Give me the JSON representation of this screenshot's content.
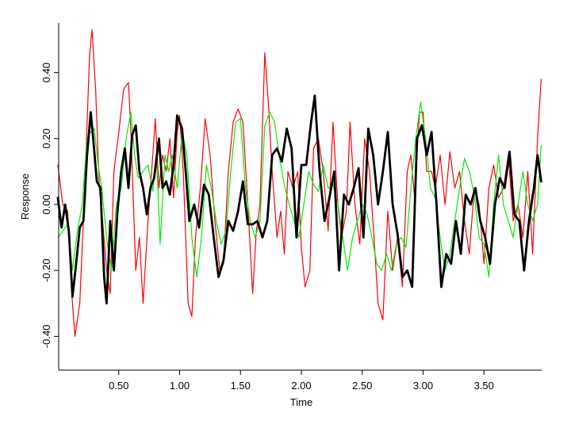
{
  "chart_data": {
    "type": "line",
    "title": "",
    "xlabel": "Time",
    "ylabel": "Response",
    "xlim": [
      0.0,
      3.98
    ],
    "ylim": [
      -0.5,
      0.55
    ],
    "grid": false,
    "legend": null,
    "x_ticks": [
      0.5,
      1.0,
      1.5,
      2.0,
      2.5,
      3.0,
      3.5
    ],
    "x_tick_labels": [
      "0.50",
      "1.00",
      "1.50",
      "2.00",
      "2.50",
      "3.00",
      "3.50"
    ],
    "y_ticks": [
      -0.4,
      -0.2,
      0.0,
      0.2,
      0.4
    ],
    "y_tick_labels": [
      "-0.40",
      "-0.20",
      "0.00",
      "0.20",
      "0.40"
    ],
    "series": [
      {
        "name": "red",
        "color": "#ff0000",
        "width": 1.2,
        "x": [
          0.0,
          0.04,
          0.08,
          0.12,
          0.14,
          0.18,
          0.22,
          0.26,
          0.28,
          0.31,
          0.34,
          0.37,
          0.4,
          0.43,
          0.46,
          0.5,
          0.54,
          0.58,
          0.6,
          0.64,
          0.67,
          0.7,
          0.74,
          0.77,
          0.8,
          0.83,
          0.86,
          0.89,
          0.92,
          0.95,
          0.98,
          1.0,
          1.03,
          1.07,
          1.1,
          1.13,
          1.17,
          1.21,
          1.25,
          1.29,
          1.33,
          1.36,
          1.4,
          1.44,
          1.48,
          1.52,
          1.56,
          1.6,
          1.63,
          1.66,
          1.7,
          1.73,
          1.76,
          1.8,
          1.83,
          1.86,
          1.89,
          1.93,
          1.97,
          2.0,
          2.03,
          2.07,
          2.1,
          2.14,
          2.18,
          2.22,
          2.26,
          2.3,
          2.33,
          2.37,
          2.4,
          2.44,
          2.48,
          2.52,
          2.56,
          2.6,
          2.63,
          2.67,
          2.71,
          2.75,
          2.79,
          2.83,
          2.87,
          2.9,
          2.93,
          2.97,
          3.0,
          3.03,
          3.07,
          3.1,
          3.14,
          3.18,
          3.22,
          3.26,
          3.3,
          3.34,
          3.38,
          3.42,
          3.46,
          3.5,
          3.54,
          3.58,
          3.62,
          3.66,
          3.7,
          3.74,
          3.78,
          3.82,
          3.86,
          3.9,
          3.94,
          3.97
        ],
        "y": [
          0.12,
          0.0,
          -0.02,
          -0.3,
          -0.4,
          -0.3,
          0.05,
          0.45,
          0.53,
          0.35,
          0.05,
          -0.06,
          -0.2,
          -0.27,
          0.1,
          0.22,
          0.35,
          0.37,
          0.22,
          -0.2,
          -0.1,
          -0.3,
          -0.05,
          0.1,
          0.26,
          0.05,
          0.15,
          0.1,
          0.2,
          0.02,
          0.22,
          0.27,
          0.1,
          -0.3,
          -0.34,
          -0.1,
          0.05,
          0.26,
          0.15,
          -0.05,
          -0.2,
          -0.18,
          0.1,
          0.25,
          0.29,
          0.25,
          0.0,
          -0.27,
          -0.08,
          0.0,
          0.46,
          0.3,
          0.1,
          -0.1,
          -0.02,
          -0.15,
          0.1,
          0.05,
          0.1,
          -0.13,
          -0.25,
          -0.2,
          0.17,
          0.2,
          0.1,
          -0.08,
          0.25,
          0.0,
          -0.1,
          -0.02,
          0.25,
          0.0,
          -0.12,
          0.2,
          0.1,
          -0.12,
          -0.3,
          -0.35,
          -0.02,
          -0.2,
          -0.1,
          -0.25,
          0.1,
          0.15,
          0.02,
          0.28,
          0.28,
          0.1,
          0.1,
          0.05,
          0.15,
          0.0,
          0.16,
          0.05,
          0.1,
          -0.05,
          -0.15,
          0.05,
          0.0,
          -0.18,
          0.05,
          0.12,
          0.02,
          0.05,
          0.15,
          -0.05,
          0.0,
          -0.1,
          0.1,
          -0.15,
          0.2,
          0.38
        ]
      },
      {
        "name": "green",
        "color": "#00ee00",
        "width": 1.2,
        "x": [
          0.0,
          0.04,
          0.08,
          0.12,
          0.16,
          0.2,
          0.24,
          0.27,
          0.3,
          0.33,
          0.36,
          0.4,
          0.44,
          0.48,
          0.52,
          0.56,
          0.6,
          0.63,
          0.66,
          0.7,
          0.74,
          0.78,
          0.81,
          0.84,
          0.88,
          0.91,
          0.94,
          0.98,
          1.02,
          1.06,
          1.1,
          1.14,
          1.18,
          1.22,
          1.26,
          1.3,
          1.34,
          1.38,
          1.42,
          1.46,
          1.5,
          1.54,
          1.58,
          1.62,
          1.66,
          1.7,
          1.74,
          1.78,
          1.82,
          1.86,
          1.9,
          1.94,
          1.98,
          2.02,
          2.06,
          2.1,
          2.14,
          2.18,
          2.22,
          2.26,
          2.3,
          2.34,
          2.38,
          2.42,
          2.46,
          2.5,
          2.54,
          2.58,
          2.62,
          2.66,
          2.7,
          2.74,
          2.78,
          2.82,
          2.86,
          2.9,
          2.94,
          2.98,
          3.02,
          3.06,
          3.1,
          3.14,
          3.18,
          3.22,
          3.26,
          3.3,
          3.34,
          3.38,
          3.42,
          3.46,
          3.5,
          3.54,
          3.58,
          3.62,
          3.66,
          3.7,
          3.74,
          3.78,
          3.82,
          3.86,
          3.9,
          3.94,
          3.97
        ],
        "y": [
          -0.1,
          -0.08,
          -0.06,
          -0.2,
          -0.08,
          0.0,
          0.2,
          0.22,
          0.23,
          0.12,
          0.05,
          -0.1,
          -0.2,
          0.0,
          0.05,
          0.2,
          0.28,
          0.15,
          0.08,
          0.1,
          0.12,
          0.04,
          0.15,
          -0.12,
          0.15,
          0.1,
          0.15,
          0.05,
          0.22,
          0.15,
          -0.1,
          -0.22,
          -0.1,
          0.12,
          0.05,
          -0.05,
          -0.12,
          -0.08,
          0.1,
          0.25,
          0.26,
          0.05,
          -0.05,
          -0.1,
          -0.05,
          0.24,
          0.28,
          0.25,
          0.14,
          0.06,
          0.0,
          -0.05,
          -0.1,
          0.0,
          0.1,
          0.06,
          0.04,
          0.12,
          0.05,
          0.06,
          0.0,
          -0.1,
          -0.2,
          -0.1,
          -0.05,
          0.0,
          -0.03,
          -0.1,
          -0.18,
          -0.2,
          -0.15,
          -0.2,
          -0.12,
          -0.1,
          -0.13,
          0.05,
          0.2,
          0.31,
          0.2,
          0.05,
          0.02,
          -0.1,
          -0.2,
          -0.15,
          -0.05,
          0.05,
          0.14,
          0.1,
          0.03,
          -0.1,
          -0.12,
          -0.22,
          0.0,
          0.15,
          0.0,
          -0.05,
          -0.1,
          0.0,
          0.1,
          0.0,
          -0.05,
          0.0,
          0.18
        ]
      },
      {
        "name": "black",
        "color": "#000000",
        "width": 2.8,
        "x": [
          0.0,
          0.03,
          0.06,
          0.09,
          0.12,
          0.15,
          0.18,
          0.21,
          0.24,
          0.27,
          0.29,
          0.32,
          0.35,
          0.38,
          0.4,
          0.43,
          0.46,
          0.49,
          0.52,
          0.55,
          0.58,
          0.61,
          0.64,
          0.67,
          0.7,
          0.73,
          0.76,
          0.79,
          0.83,
          0.86,
          0.89,
          0.92,
          0.95,
          0.98,
          1.02,
          1.05,
          1.08,
          1.12,
          1.16,
          1.2,
          1.24,
          1.28,
          1.32,
          1.36,
          1.4,
          1.44,
          1.48,
          1.52,
          1.56,
          1.6,
          1.64,
          1.68,
          1.72,
          1.76,
          1.8,
          1.84,
          1.88,
          1.92,
          1.96,
          2.0,
          2.04,
          2.08,
          2.11,
          2.15,
          2.19,
          2.23,
          2.27,
          2.31,
          2.35,
          2.39,
          2.43,
          2.47,
          2.51,
          2.55,
          2.59,
          2.63,
          2.67,
          2.71,
          2.75,
          2.79,
          2.83,
          2.87,
          2.91,
          2.95,
          2.99,
          3.03,
          3.07,
          3.11,
          3.15,
          3.19,
          3.23,
          3.27,
          3.31,
          3.35,
          3.39,
          3.43,
          3.47,
          3.51,
          3.55,
          3.59,
          3.63,
          3.67,
          3.71,
          3.75,
          3.79,
          3.83,
          3.87,
          3.91,
          3.94,
          3.97
        ],
        "y": [
          0.02,
          -0.07,
          0.0,
          -0.08,
          -0.28,
          -0.18,
          -0.07,
          -0.05,
          0.15,
          0.28,
          0.2,
          0.07,
          0.05,
          -0.22,
          -0.3,
          -0.05,
          -0.2,
          -0.02,
          0.1,
          0.17,
          0.05,
          0.21,
          0.24,
          0.1,
          0.05,
          -0.03,
          0.05,
          0.08,
          0.2,
          0.05,
          0.07,
          0.03,
          0.12,
          0.27,
          0.23,
          0.1,
          -0.05,
          0.0,
          -0.07,
          0.06,
          0.03,
          -0.1,
          -0.22,
          -0.17,
          -0.05,
          -0.08,
          -0.02,
          0.07,
          -0.06,
          -0.06,
          -0.05,
          -0.1,
          -0.05,
          0.15,
          0.17,
          0.13,
          0.23,
          0.17,
          -0.1,
          0.12,
          0.12,
          0.25,
          0.33,
          0.1,
          -0.05,
          0.02,
          0.1,
          -0.2,
          0.03,
          0.0,
          0.05,
          0.11,
          -0.1,
          0.23,
          0.15,
          0.0,
          0.1,
          0.22,
          0.0,
          -0.09,
          -0.22,
          -0.2,
          -0.25,
          0.2,
          0.24,
          0.15,
          0.22,
          0.0,
          -0.25,
          -0.15,
          -0.18,
          -0.05,
          -0.15,
          0.03,
          0.0,
          0.05,
          -0.05,
          -0.1,
          -0.18,
          0.0,
          0.08,
          0.05,
          0.16,
          -0.03,
          -0.05,
          -0.2,
          -0.05,
          0.05,
          0.15,
          0.07
        ]
      }
    ]
  },
  "axes": {
    "x_label": "Time",
    "y_label": "Response"
  }
}
